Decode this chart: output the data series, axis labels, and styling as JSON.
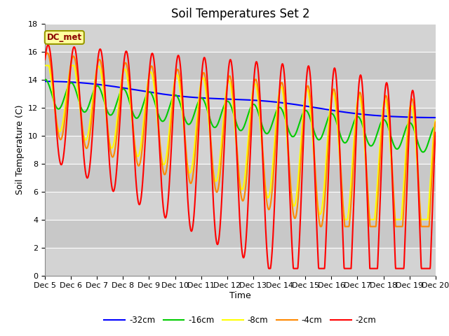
{
  "title": "Soil Temperatures Set 2",
  "xlabel": "Time",
  "ylabel": "Soil Temperature (C)",
  "ylim": [
    0,
    18
  ],
  "annotation": "DC_met",
  "x_tick_labels": [
    "Dec 5",
    "Dec 6",
    "Dec 7",
    "Dec 8",
    "Dec 9",
    "Dec 10",
    "Dec 11",
    "Dec 12",
    "Dec 13",
    "Dec 14",
    "Dec 15",
    "Dec 16",
    "Dec 17",
    "Dec 18",
    "Dec 19",
    "Dec 20"
  ],
  "legend_labels": [
    "-32cm",
    "-16cm",
    "-8cm",
    "-4cm",
    "-2cm"
  ],
  "line_colors": [
    "#0000FF",
    "#00CC00",
    "#FFFF00",
    "#FF8800",
    "#FF0000"
  ],
  "bg_color": "#E0E0E0",
  "title_fontsize": 12,
  "axis_label_fontsize": 9,
  "tick_fontsize": 8
}
